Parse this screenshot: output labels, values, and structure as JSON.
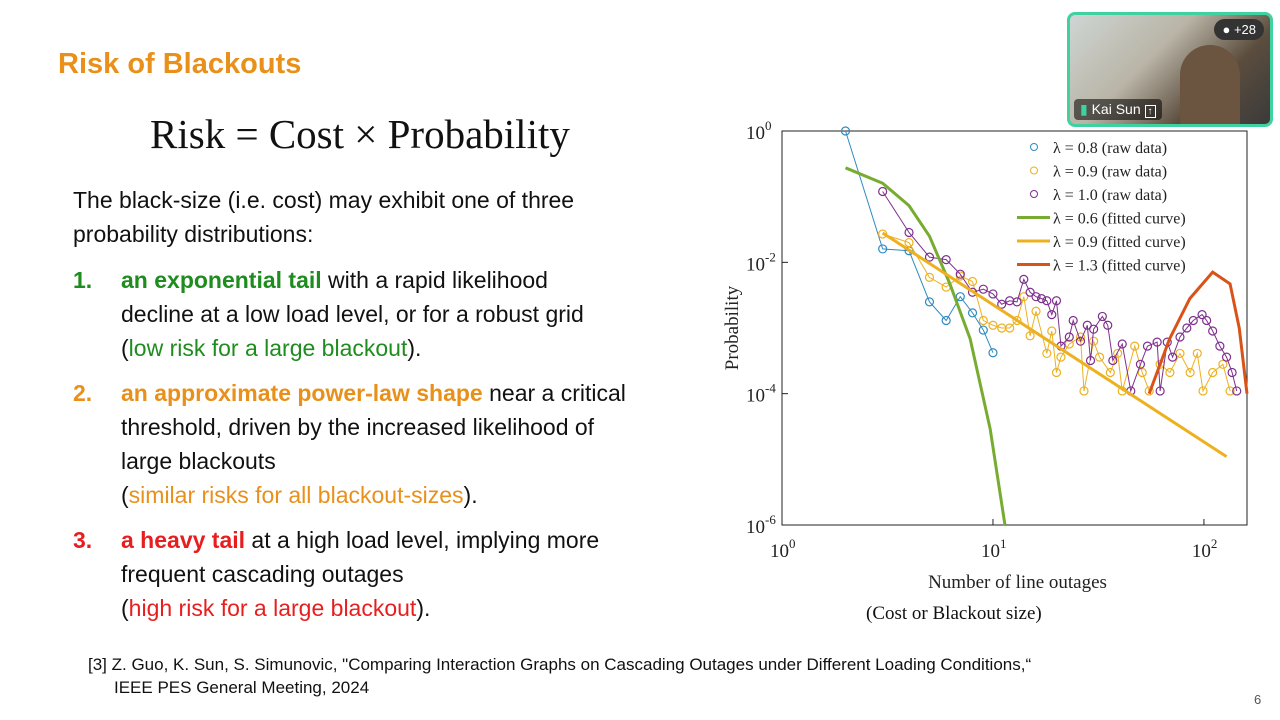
{
  "slide": {
    "title": "Risk of Blackouts",
    "equation": "Risk = Cost × Probability",
    "intro": [
      "The black-size (i.e. cost) may exhibit one of three",
      "probability distributions:"
    ],
    "items": [
      {
        "num": "1.",
        "highlight": "an exponential tail",
        "rest": " with a rapid likelihood",
        "lines": [
          "decline at a low load level, or for a robust grid"
        ],
        "paren_open": "(",
        "paren_text": "low risk for a large blackout",
        "paren_close": ").",
        "color": "#1E8C1E"
      },
      {
        "num": "2.",
        "highlight": "an approximate power-law shape",
        "rest": " near a critical",
        "lines": [
          "threshold, driven by the increased likelihood of",
          "large blackouts"
        ],
        "paren_open": "(",
        "paren_text": "similar risks for all blackout-sizes",
        "paren_close": ").",
        "color": "#E8901A"
      },
      {
        "num": "3.",
        "highlight": "a heavy tail",
        "rest": " at a high load level, implying more",
        "lines": [
          "frequent cascading outages"
        ],
        "paren_open": "(",
        "paren_text": "high risk for a large blackout",
        "paren_close": ").",
        "color": "#E81E1E"
      }
    ],
    "reference": [
      "[3] Z. Guo, K. Sun, S. Simunovic, \"Comparing Interaction Graphs on Cascading Outages under Different Loading Conditions,“",
      "IEEE PES General Meeting, 2024"
    ],
    "page_number": "6",
    "caption": "(Cost or Blackout size)"
  },
  "video": {
    "participant_name": "Kai Sun",
    "extra_participants": "+28",
    "icons": [
      "microphone-icon",
      "share-screen-icon",
      "person-icon"
    ],
    "border_color": "#3FD1A0"
  },
  "chart_data": {
    "type": "scatter",
    "xlabel": "Number of line outages",
    "ylabel": "Probability",
    "xscale": "log",
    "yscale": "log",
    "xlim": [
      1,
      160
    ],
    "ylim": [
      1e-06,
      1
    ],
    "xticks": [
      {
        "v": 1,
        "base": "10",
        "exp": "0"
      },
      {
        "v": 10,
        "base": "10",
        "exp": "1"
      },
      {
        "v": 100,
        "base": "10",
        "exp": "2"
      }
    ],
    "yticks": [
      {
        "v": 1,
        "base": "10",
        "exp": "0"
      },
      {
        "v": 0.01,
        "base": "10",
        "exp": "-2"
      },
      {
        "v": 0.0001,
        "base": "10",
        "exp": "-4"
      },
      {
        "v": 1e-06,
        "base": "10",
        "exp": "-6"
      }
    ],
    "grid": false,
    "legend": "top-right",
    "series": [
      {
        "name": "λ = 0.8 (raw data)",
        "kind": "points",
        "color": "#2E8BC0",
        "x": [
          2,
          3,
          4,
          5,
          6,
          7,
          8,
          9,
          10
        ],
        "y": [
          1.0,
          0.016,
          0.015,
          0.0025,
          0.0013,
          0.003,
          0.0017,
          0.00093,
          0.00042
        ]
      },
      {
        "name": "λ = 0.9 (raw data)",
        "kind": "points",
        "color": "#EDB120",
        "x": [
          3,
          4,
          5,
          6,
          7,
          8,
          9,
          10,
          11,
          12,
          13,
          14,
          15,
          16,
          18,
          19,
          20,
          21,
          23,
          26,
          27,
          30,
          32,
          36,
          39,
          41,
          47,
          51,
          55,
          62,
          69,
          77,
          86,
          93,
          99,
          110,
          123,
          133
        ],
        "y": [
          0.027,
          0.02,
          0.0059,
          0.0042,
          0.0062,
          0.0051,
          0.0013,
          0.0011,
          0.001,
          0.001,
          0.0013,
          0.003,
          0.00076,
          0.0018,
          0.00041,
          0.0009,
          0.00021,
          0.00036,
          0.00057,
          0.00073,
          0.00011,
          0.00063,
          0.00036,
          0.00021,
          0.00041,
          0.00011,
          0.00053,
          0.00021,
          0.00011,
          0.00028,
          0.00021,
          0.00041,
          0.00021,
          0.00041,
          0.00011,
          0.00021,
          0.00028,
          0.00011
        ]
      },
      {
        "name": "λ = 1.0 (raw data)",
        "kind": "points",
        "color": "#7E2F8E",
        "x": [
          3,
          4,
          5,
          6,
          7,
          8,
          9,
          10,
          11,
          12,
          13,
          14,
          15,
          16,
          17,
          18,
          19,
          20,
          21,
          23,
          24,
          26,
          28,
          29,
          30,
          33,
          35,
          37,
          41,
          45,
          50,
          54,
          60,
          62,
          67,
          71,
          77,
          83,
          89,
          98,
          103,
          110,
          119,
          128,
          136,
          143
        ],
        "y": [
          0.12,
          0.0285,
          0.012,
          0.011,
          0.0066,
          0.0035,
          0.0039,
          0.0033,
          0.0023,
          0.0026,
          0.0025,
          0.0055,
          0.0035,
          0.003,
          0.0028,
          0.0026,
          0.0016,
          0.0026,
          0.00053,
          0.00073,
          0.0013,
          0.00063,
          0.0011,
          0.00032,
          0.00096,
          0.0015,
          0.0011,
          0.00032,
          0.00057,
          0.00011,
          0.00028,
          0.00053,
          0.00061,
          0.00011,
          0.00061,
          0.00036,
          0.00073,
          0.001,
          0.0013,
          0.0016,
          0.0013,
          0.0009,
          0.00053,
          0.00036,
          0.00021,
          0.00011
        ]
      },
      {
        "name": "λ = 0.6 (fitted curve)",
        "kind": "line",
        "color": "#77AC30",
        "x": [
          2,
          3,
          4,
          5,
          6.25,
          7.8,
          9.7,
          11.4
        ],
        "y": [
          0.275,
          0.16,
          0.073,
          0.025,
          0.0047,
          0.00068,
          2.9e-05,
          1e-06
        ]
      },
      {
        "name": "λ = 0.9 (fitted curve)",
        "kind": "line",
        "color": "#EDB120",
        "x": [
          3,
          128
        ],
        "y": [
          0.028,
          1.1e-05
        ]
      },
      {
        "name": "λ = 1.3 (fitted curve)",
        "kind": "line",
        "color": "#D95319",
        "x": [
          55,
          68.7,
          85.7,
          110,
          133,
          147,
          160
        ],
        "y": [
          0.0001,
          0.00068,
          0.0028,
          0.0071,
          0.0047,
          0.001,
          0.0001
        ]
      }
    ]
  }
}
